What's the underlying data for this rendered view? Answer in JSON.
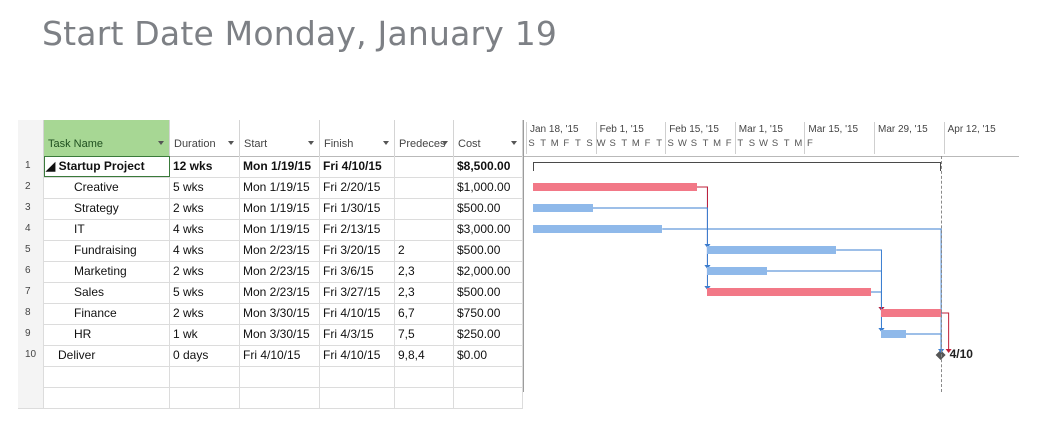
{
  "slide_title": "Start Date Monday, January 19",
  "colors": {
    "critical_bar": "#f27887",
    "task_bar": "#8fb9ea",
    "header_selected": "#a7d794",
    "link_blue": "#3b7fd1",
    "link_red": "#c0203a"
  },
  "columns": {
    "task_name": "Task Name",
    "duration": "Duration",
    "start": "Start",
    "finish": "Finish",
    "predecessors": "Predeces",
    "cost": "Cost"
  },
  "tasks": [
    {
      "id": "1",
      "name": "◢ Startup Project",
      "duration": "12 wks",
      "start": "Mon 1/19/15",
      "finish": "Fri 4/10/15",
      "pred": "",
      "cost": "$8,500.00"
    },
    {
      "id": "2",
      "name": "Creative",
      "duration": "5 wks",
      "start": "Mon 1/19/15",
      "finish": "Fri 2/20/15",
      "pred": "",
      "cost": "$1,000.00"
    },
    {
      "id": "3",
      "name": "Strategy",
      "duration": "2 wks",
      "start": "Mon 1/19/15",
      "finish": "Fri 1/30/15",
      "pred": "",
      "cost": "$500.00"
    },
    {
      "id": "4",
      "name": "IT",
      "duration": "4 wks",
      "start": "Mon 1/19/15",
      "finish": "Fri 2/13/15",
      "pred": "",
      "cost": "$3,000.00"
    },
    {
      "id": "5",
      "name": "Fundraising",
      "duration": "4 wks",
      "start": "Mon 2/23/15",
      "finish": "Fri 3/20/15",
      "pred": "2",
      "cost": "$500.00"
    },
    {
      "id": "6",
      "name": "Marketing",
      "duration": "2 wks",
      "start": "Mon 2/23/15",
      "finish": "Fri 3/6/15",
      "pred": "2,3",
      "cost": "$2,000.00"
    },
    {
      "id": "7",
      "name": "Sales",
      "duration": "5 wks",
      "start": "Mon 2/23/15",
      "finish": "Fri 3/27/15",
      "pred": "2,3",
      "cost": "$500.00"
    },
    {
      "id": "8",
      "name": "Finance",
      "duration": "2 wks",
      "start": "Mon 3/30/15",
      "finish": "Fri 4/10/15",
      "pred": "6,7",
      "cost": "$750.00"
    },
    {
      "id": "9",
      "name": "HR",
      "duration": "1 wk",
      "start": "Mon 3/30/15",
      "finish": "Fri 4/3/15",
      "pred": "7,5",
      "cost": "$250.00"
    },
    {
      "id": "10",
      "name": "Deliver",
      "duration": "0 days",
      "start": "Fri 4/10/15",
      "finish": "Fri 4/10/15",
      "pred": "9,8,4",
      "cost": "$0.00"
    }
  ],
  "timescale": {
    "weeks": [
      "Jan 18, '15",
      "Feb 1, '15",
      "Feb 15, '15",
      "Mar 1, '15",
      "Mar 15, '15",
      "Mar 29, '15",
      "Apr 12, '15"
    ],
    "days": [
      "S",
      "T",
      "M",
      "F",
      "T",
      "S",
      "W",
      "S",
      "T",
      "M",
      "F",
      "T",
      "S",
      "W",
      "S",
      "T",
      "M",
      "F",
      "T",
      "S",
      "W",
      "S",
      "T",
      "M",
      "F"
    ]
  },
  "milestone_label": "4/10"
}
